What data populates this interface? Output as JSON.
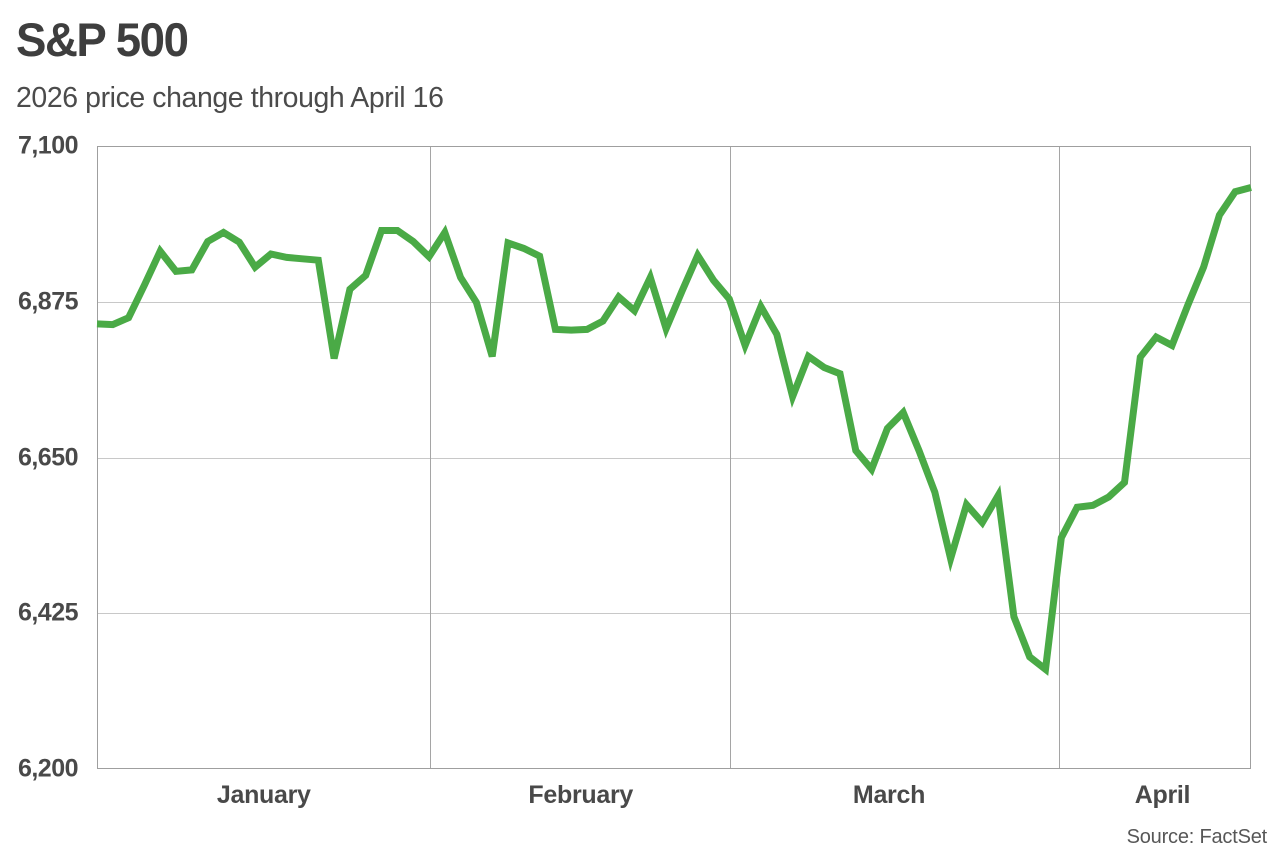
{
  "chart_data": {
    "type": "line",
    "title": "S&P 500",
    "subtitle": "2026 price change through April 16",
    "source": "Source: FactSet",
    "ylim": [
      6200,
      7100
    ],
    "yticks": [
      {
        "label": "7,100",
        "value": 7100
      },
      {
        "label": "6,875",
        "value": 6875
      },
      {
        "label": "6,650",
        "value": 6650
      },
      {
        "label": "6,425",
        "value": 6425
      },
      {
        "label": "6,200",
        "value": 6200
      }
    ],
    "x_unit": "daily closes, trading days Jan 2 - Apr 16, 2026",
    "x_axis": {
      "month_labels": [
        "January",
        "February",
        "March",
        "April"
      ],
      "month_center_day": [
        10.55,
        30.6,
        50.1,
        67.4
      ],
      "month_boundary_day": [
        21.06,
        40.04,
        60.85
      ]
    },
    "grid": {
      "horizontal": true,
      "vertical_month_dividers": true
    },
    "legend": "none",
    "values": [
      6843,
      6842,
      6852,
      6899,
      6948,
      6919,
      6921,
      6962,
      6975,
      6961,
      6925,
      6944,
      6939,
      6937,
      6935,
      6793,
      6893,
      6913,
      6978,
      6978,
      6962,
      6940,
      6975,
      6910,
      6874,
      6796,
      6960,
      6952,
      6941,
      6835,
      6834,
      6835,
      6847,
      6882,
      6862,
      6910,
      6836,
      6890,
      6942,
      6906,
      6879,
      6812,
      6868,
      6828,
      6738,
      6796,
      6780,
      6771,
      6660,
      6633,
      6692,
      6715,
      6660,
      6600,
      6504,
      6582,
      6556,
      6595,
      6420,
      6362,
      6344,
      6534,
      6578,
      6581,
      6593,
      6614,
      6795,
      6824,
      6812,
      6870,
      6925,
      7000,
      7034,
      7040
    ]
  },
  "colors": {
    "line": "#4aaa46",
    "title": "#3e3e3e",
    "subtitle": "#4b4b4b",
    "axis_label": "#494949",
    "source": "#575757",
    "grid_horizontal": "#c8c8c8",
    "grid_vertical": "#a5a5a5",
    "plot_border": "#9f9f9f",
    "background": "#ffffff"
  }
}
